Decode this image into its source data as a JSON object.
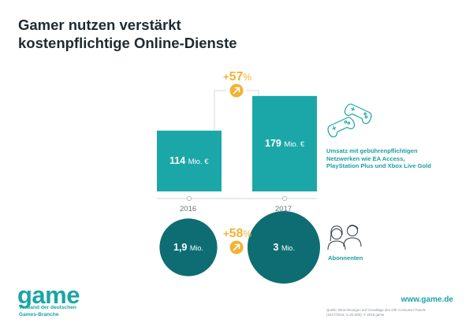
{
  "title_line1": "Gamer nutzen verstärkt",
  "title_line2": "kostenpflichtige Online-Dienste",
  "colors": {
    "teal": "#1ba7a8",
    "dark_teal": "#0d6d73",
    "accent": "#f2b233",
    "text_dark": "#1e2b30"
  },
  "chart_data": [
    {
      "type": "bar",
      "categories": [
        "2016",
        "2017"
      ],
      "values": [
        114,
        179
      ],
      "value_labels": [
        "114",
        "179"
      ],
      "unit": "Mio. €",
      "change": {
        "sign": "+",
        "number": "57",
        "percent": "%"
      },
      "caption": [
        "Umsatz mit gebührenpflichtigen",
        "Netzwerken wie EA Access,",
        "PlayStation Plus und Xbox Live Gold"
      ],
      "icon": "gamepad-icon"
    },
    {
      "type": "bubble",
      "categories": [
        "2016",
        "2017"
      ],
      "values": [
        1.9,
        3
      ],
      "value_labels": [
        "1,9",
        "3"
      ],
      "unit": "Mio.",
      "change": {
        "sign": "+",
        "number": "58",
        "percent": "%"
      },
      "caption": "Abonnenten",
      "icon": "users-icon"
    }
  ],
  "logo": {
    "wordmark": "game",
    "sub_line1": "Verband der deutschen",
    "sub_line2": "Games-Branche"
  },
  "footer": {
    "url": "www.game.de",
    "source_line1": "Quelle: Berechnungen auf Grundlage des GfK Consumer Panels",
    "source_line2": "(2017/2016; n=25.000); © 2018 game"
  }
}
